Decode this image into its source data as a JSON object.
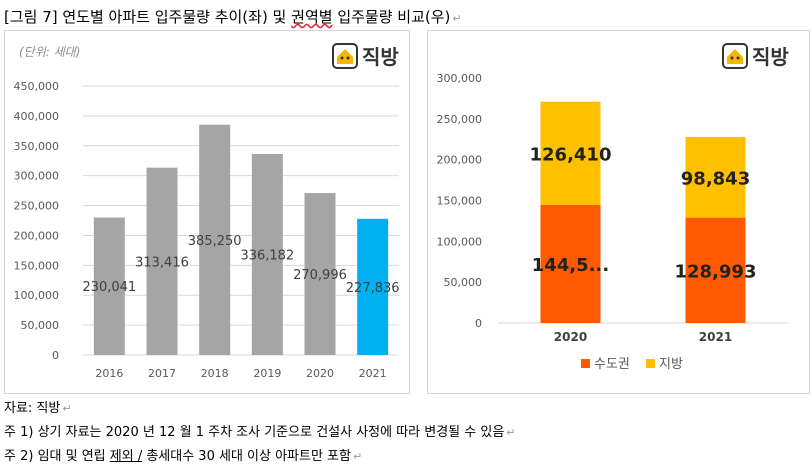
{
  "figure_title": {
    "prefix": "[그림 7] 연도별 아파트 입주물량 추이(좌) 및 ",
    "squiggle": "권역별",
    "suffix": " 입주물량 비교(우)"
  },
  "brand": {
    "name": "직방",
    "color": "#333333",
    "icon_color": "#f5b700"
  },
  "chart_data": [
    {
      "type": "bar",
      "unit_label": "(단위: 세대)",
      "categories": [
        "2016",
        "2017",
        "2018",
        "2019",
        "2020",
        "2021"
      ],
      "values": [
        230041,
        313416,
        385250,
        336182,
        270996,
        227836
      ],
      "value_labels": [
        "230,041",
        "313,416",
        "385,250",
        "336,182",
        "270,996",
        "227,836"
      ],
      "ylim": [
        0,
        450000
      ],
      "yticks": [
        "0",
        "50,000",
        "100,000",
        "150,000",
        "200,000",
        "250,000",
        "300,000",
        "350,000",
        "400,000",
        "450,000"
      ],
      "colors": {
        "default": "#a5a5a5",
        "highlight": "#00b0f0"
      },
      "highlight_index": 5,
      "grid": true
    },
    {
      "type": "bar",
      "stacked": true,
      "categories": [
        "2020",
        "2021"
      ],
      "series": [
        {
          "name": "수도권",
          "values": [
            144586,
            128993
          ],
          "labels": [
            "144,5...",
            "128,993"
          ],
          "color": "#ff5a00"
        },
        {
          "name": "지방",
          "values": [
            126410,
            98843
          ],
          "labels": [
            "126,410",
            "98,843"
          ],
          "color": "#ffc000"
        }
      ],
      "ylim": [
        0,
        300000
      ],
      "yticks": [
        "0",
        "50,000",
        "100,000",
        "150,000",
        "200,000",
        "250,000",
        "300,000"
      ],
      "legend_position": "bottom",
      "grid": false
    }
  ],
  "notes": {
    "source": "자료: 직방",
    "note1": "주 1) 상기 자료는 2020 년 12 월 1 주차 조사 기준으로 건설사 사정에 따라 변경될 수 있음",
    "note2_a": "주 2) 임대 및 연립 ",
    "note2_b": "제외 /",
    "note2_c": " 총세대수 30 세대 이상 아파트만 포함"
  },
  "para_mark": "↵"
}
